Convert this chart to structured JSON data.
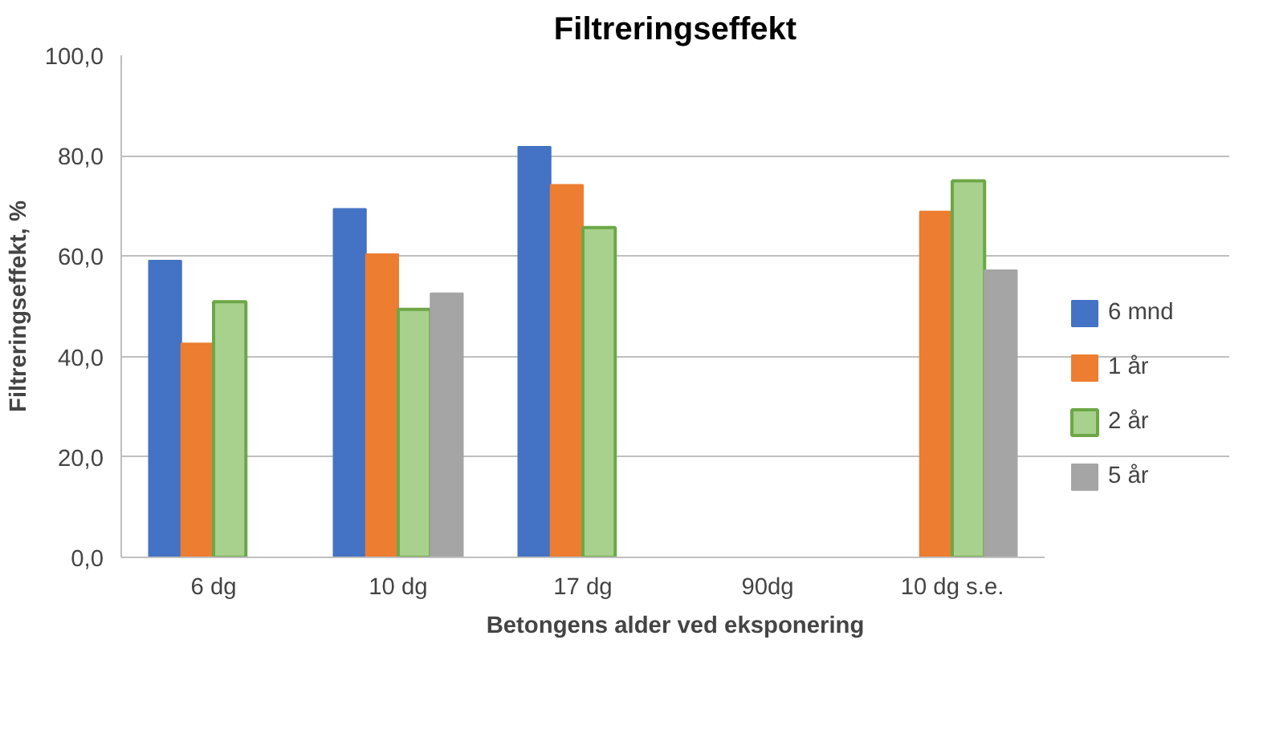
{
  "chart_data": {
    "type": "bar",
    "title": "Filtreringseffekt",
    "xlabel": "Betongens alder ved eksponering",
    "ylabel": "Filtreringseffekt, %",
    "categories": [
      "6 dg",
      "10 dg",
      "17 dg",
      "90dg",
      "10 dg s.e."
    ],
    "series": [
      {
        "name": "6 mnd",
        "color": "#4472c4",
        "values": [
          59.1,
          69.4,
          81.8,
          null,
          null
        ]
      },
      {
        "name": "1 år",
        "color": "#ed7d31",
        "values": [
          42.6,
          60.4,
          74.2,
          null,
          68.9
        ]
      },
      {
        "name": "2 år",
        "color": "#a9d18e",
        "values": [
          50.9,
          49.4,
          65.7,
          null,
          75.0
        ]
      },
      {
        "name": "5 år",
        "color": "#a5a5a5",
        "values": [
          null,
          52.6,
          null,
          null,
          57.2
        ]
      }
    ],
    "ylim": [
      0,
      100
    ],
    "yticks": [
      {
        "value": 0,
        "label": "0,0"
      },
      {
        "value": 20,
        "label": "20,0"
      },
      {
        "value": 40,
        "label": "40,0"
      },
      {
        "value": 60,
        "label": "60,0"
      },
      {
        "value": 80,
        "label": "80,0"
      },
      {
        "value": 100,
        "label": "100,0"
      }
    ],
    "grid": "y",
    "legend": "right"
  }
}
